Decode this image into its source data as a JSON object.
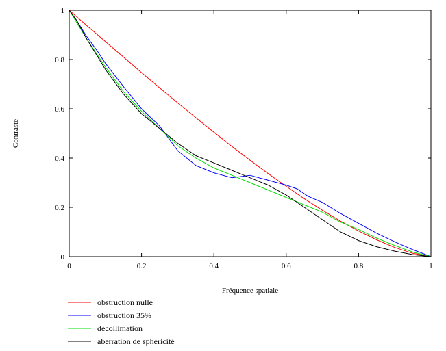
{
  "chart_data": {
    "type": "line",
    "title": "",
    "xlabel": "Fréquence spatiale",
    "ylabel": "Contraste",
    "xlim": [
      0,
      1
    ],
    "ylim": [
      0,
      1
    ],
    "x_ticks": [
      "0",
      "0.2",
      "0.4",
      "0.6",
      "0.8",
      "1"
    ],
    "y_ticks": [
      "0",
      "0.2",
      "0.4",
      "0.6",
      "0.8",
      "1"
    ],
    "grid": false,
    "legend_position": "bottom-left",
    "series": [
      {
        "name": "obstruction nulle",
        "color": "#ff0000",
        "x": [
          0,
          0.05,
          0.1,
          0.15,
          0.2,
          0.25,
          0.3,
          0.35,
          0.4,
          0.45,
          0.5,
          0.55,
          0.6,
          0.65,
          0.7,
          0.75,
          0.8,
          0.85,
          0.9,
          0.95,
          1.0
        ],
        "y": [
          1.0,
          0.936,
          0.873,
          0.81,
          0.747,
          0.685,
          0.624,
          0.564,
          0.505,
          0.447,
          0.391,
          0.337,
          0.285,
          0.235,
          0.188,
          0.144,
          0.104,
          0.068,
          0.037,
          0.013,
          0.0
        ]
      },
      {
        "name": "obstruction 35%",
        "color": "#0000ff",
        "x": [
          0,
          0.02,
          0.05,
          0.08,
          0.1,
          0.15,
          0.2,
          0.25,
          0.3,
          0.35,
          0.4,
          0.45,
          0.5,
          0.55,
          0.6,
          0.63,
          0.66,
          0.7,
          0.75,
          0.8,
          0.85,
          0.9,
          0.95,
          1.0
        ],
        "y": [
          1.0,
          0.96,
          0.89,
          0.83,
          0.785,
          0.69,
          0.6,
          0.53,
          0.43,
          0.37,
          0.34,
          0.32,
          0.33,
          0.31,
          0.29,
          0.275,
          0.245,
          0.22,
          0.175,
          0.135,
          0.095,
          0.06,
          0.028,
          0.0
        ]
      },
      {
        "name": "décollimation",
        "color": "#00dd00",
        "x": [
          0,
          0.05,
          0.1,
          0.15,
          0.2,
          0.25,
          0.3,
          0.35,
          0.4,
          0.45,
          0.5,
          0.55,
          0.6,
          0.65,
          0.7,
          0.75,
          0.8,
          0.85,
          0.9,
          0.95,
          1.0
        ],
        "y": [
          1.0,
          0.88,
          0.77,
          0.67,
          0.59,
          0.52,
          0.45,
          0.4,
          0.36,
          0.33,
          0.3,
          0.27,
          0.24,
          0.21,
          0.18,
          0.14,
          0.11,
          0.075,
          0.045,
          0.018,
          0.0
        ]
      },
      {
        "name": "aberration de sphéricité",
        "color": "#000000",
        "x": [
          0,
          0.02,
          0.05,
          0.1,
          0.15,
          0.2,
          0.25,
          0.3,
          0.35,
          0.4,
          0.45,
          0.5,
          0.55,
          0.6,
          0.65,
          0.7,
          0.75,
          0.8,
          0.85,
          0.9,
          0.95,
          1.0
        ],
        "y": [
          1.0,
          0.96,
          0.88,
          0.76,
          0.66,
          0.58,
          0.52,
          0.46,
          0.41,
          0.38,
          0.35,
          0.32,
          0.29,
          0.25,
          0.2,
          0.15,
          0.1,
          0.065,
          0.04,
          0.022,
          0.008,
          0.0
        ]
      }
    ]
  }
}
